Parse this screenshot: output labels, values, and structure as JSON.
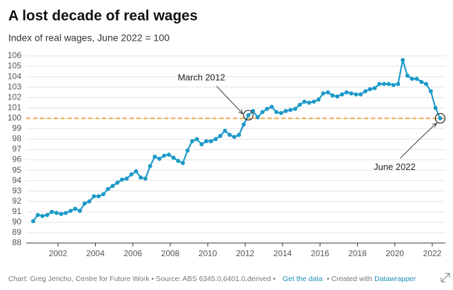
{
  "chart_data": {
    "type": "line",
    "title": "A lost decade of real wages",
    "subtitle": "Index of real wages, June 2022 = 100",
    "x": [
      2000.67,
      2000.92,
      2001.17,
      2001.42,
      2001.67,
      2001.92,
      2002.17,
      2002.42,
      2002.67,
      2002.92,
      2003.17,
      2003.42,
      2003.67,
      2003.92,
      2004.17,
      2004.42,
      2004.67,
      2004.92,
      2005.17,
      2005.42,
      2005.67,
      2005.92,
      2006.17,
      2006.42,
      2006.67,
      2006.92,
      2007.17,
      2007.42,
      2007.67,
      2007.92,
      2008.17,
      2008.42,
      2008.67,
      2008.92,
      2009.17,
      2009.42,
      2009.67,
      2009.92,
      2010.17,
      2010.42,
      2010.67,
      2010.92,
      2011.17,
      2011.42,
      2011.67,
      2011.92,
      2012.17,
      2012.42,
      2012.67,
      2012.92,
      2013.17,
      2013.42,
      2013.67,
      2013.92,
      2014.17,
      2014.42,
      2014.67,
      2014.92,
      2015.17,
      2015.42,
      2015.67,
      2015.92,
      2016.17,
      2016.42,
      2016.67,
      2016.92,
      2017.17,
      2017.42,
      2017.67,
      2017.92,
      2018.17,
      2018.42,
      2018.67,
      2018.92,
      2019.17,
      2019.42,
      2019.67,
      2019.92,
      2020.17,
      2020.42,
      2020.67,
      2020.92,
      2021.17,
      2021.42,
      2021.67,
      2021.92,
      2022.17,
      2022.42
    ],
    "series": [
      {
        "name": "Index of real wages",
        "color": "#1b9ac8",
        "values": [
          90.1,
          90.7,
          90.6,
          90.7,
          91.0,
          90.9,
          90.8,
          90.9,
          91.1,
          91.3,
          91.1,
          91.8,
          92.0,
          92.5,
          92.5,
          92.7,
          93.2,
          93.5,
          93.8,
          94.1,
          94.2,
          94.6,
          94.9,
          94.3,
          94.2,
          95.4,
          96.3,
          96.1,
          96.4,
          96.5,
          96.2,
          95.9,
          95.7,
          96.9,
          97.8,
          98.0,
          97.5,
          97.8,
          97.8,
          98.0,
          98.3,
          98.8,
          98.4,
          98.2,
          98.4,
          99.4,
          100.3,
          100.7,
          100.1,
          100.6,
          100.9,
          101.1,
          100.6,
          100.5,
          100.7,
          100.8,
          100.9,
          101.3,
          101.6,
          101.5,
          101.6,
          101.8,
          102.4,
          102.5,
          102.2,
          102.1,
          102.3,
          102.5,
          102.4,
          102.3,
          102.3,
          102.6,
          102.8,
          102.9,
          103.3,
          103.3,
          103.3,
          103.2,
          103.3,
          105.6,
          104.1,
          103.8,
          103.8,
          103.5,
          103.3,
          102.6,
          101.0,
          100.0
        ]
      }
    ],
    "xlim": [
      2000.3,
      2022.7
    ],
    "xticks": [
      2002,
      2004,
      2006,
      2008,
      2010,
      2012,
      2014,
      2016,
      2018,
      2020,
      2022
    ],
    "ylim": [
      88,
      106
    ],
    "yticks": [
      88,
      89,
      90,
      91,
      92,
      93,
      94,
      95,
      96,
      97,
      98,
      99,
      100,
      101,
      102,
      103,
      104,
      105,
      106
    ],
    "grid": true,
    "reference_line": {
      "value": 100,
      "color": "#f5a742"
    },
    "annotations": [
      {
        "text": "March 2012",
        "x": 2012.17,
        "y": 100.3
      },
      {
        "text": "June 2022",
        "x": 2022.42,
        "y": 100.0
      }
    ],
    "footer": {
      "credit": "Chart: Greg Jericho, Centre for Future Work • Source: ABS 6345.0,6401.0,derived •",
      "link": "Get the data",
      "created": "• Created with",
      "tool": "Datawrapper"
    }
  }
}
